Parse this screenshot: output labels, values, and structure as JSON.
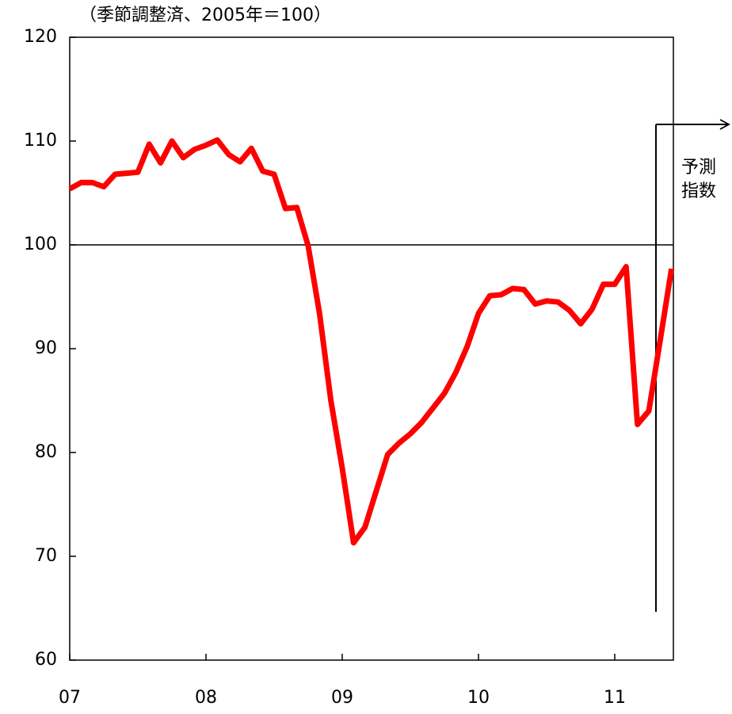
{
  "chart_data": {
    "type": "line",
    "unit_label": "（季節調整済、2005年＝100）",
    "annotation": [
      "予測",
      "指数"
    ],
    "categories": [
      "07",
      null,
      null,
      null,
      null,
      null,
      null,
      null,
      null,
      null,
      null,
      null,
      "08",
      null,
      null,
      null,
      null,
      null,
      null,
      null,
      null,
      null,
      null,
      null,
      "09",
      null,
      null,
      null,
      null,
      null,
      null,
      null,
      null,
      null,
      null,
      null,
      "10",
      null,
      null,
      null,
      null,
      null,
      null,
      null,
      null,
      null,
      null,
      null,
      "11",
      null,
      null,
      null,
      null,
      null
    ],
    "series": [
      {
        "color": "#ff0000",
        "values": [
          105.4,
          106.0,
          106.0,
          105.6,
          106.8,
          106.9,
          107.0,
          109.7,
          107.9,
          110.0,
          108.4,
          109.2,
          109.6,
          110.1,
          108.7,
          108.0,
          109.3,
          107.1,
          106.8,
          103.5,
          103.6,
          99.9,
          93.4,
          85.0,
          78.5,
          71.3,
          72.8,
          76.3,
          79.8,
          80.9,
          81.8,
          82.9,
          84.3,
          85.7,
          87.7,
          90.2,
          93.4,
          95.1,
          95.2,
          95.8,
          95.7,
          94.3,
          94.6,
          94.5,
          93.7,
          92.4,
          93.8,
          96.2,
          96.2,
          97.9,
          82.7,
          84.0,
          90.8,
          97.7
        ]
      }
    ],
    "ylim": [
      60,
      120
    ],
    "yticks": [
      60,
      70,
      80,
      90,
      100,
      110,
      120
    ],
    "reference_line": 100,
    "grid": false
  }
}
